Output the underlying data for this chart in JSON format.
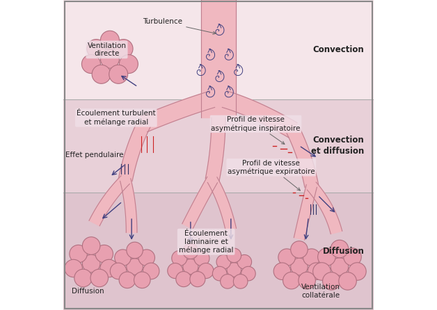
{
  "bg_top": "#f5e6ea",
  "bg_mid": "#e8d0d8",
  "bg_bot": "#dfc4ce",
  "bg_overall": "#e8d0d8",
  "border_color": "#555555",
  "tube_fill": "#f0b8c0",
  "tube_edge": "#c08090",
  "alveoli_fill": "#e8a0b0",
  "alveoli_edge": "#b07080",
  "arrow_color": "#404080",
  "red_line_color": "#cc2222",
  "text_color": "#222222",
  "label_bg": "#f0e0e8",
  "section_label_bold": true,
  "labels": {
    "convection": "Convection",
    "convection_diffusion": "Convection\net diffusion",
    "diffusion": "Diffusion",
    "turbulence": "Turbulence",
    "ventilation_directe": "Ventilation\ndirecte",
    "ecoulement_turbulent": "Écoulement turbulent\net mélange radial",
    "effet_pendulaire": "Effet pendulaire",
    "profil_inspiratoire": "Profil de vitesse\nasymétrique inspiratoire",
    "profil_expiratoire": "Profil de vitesse\nasymétrique expiratoire",
    "ecoulement_laminaire": "Écoulement\nlaminaire et\nmélange radial",
    "diffusion_bottom": "Diffusion",
    "ventilation_collaterale": "Ventilation\ncollatérale"
  },
  "section_boundaries": [
    0.68,
    0.38
  ],
  "fig_width": 6.28,
  "fig_height": 4.46,
  "dpi": 100
}
